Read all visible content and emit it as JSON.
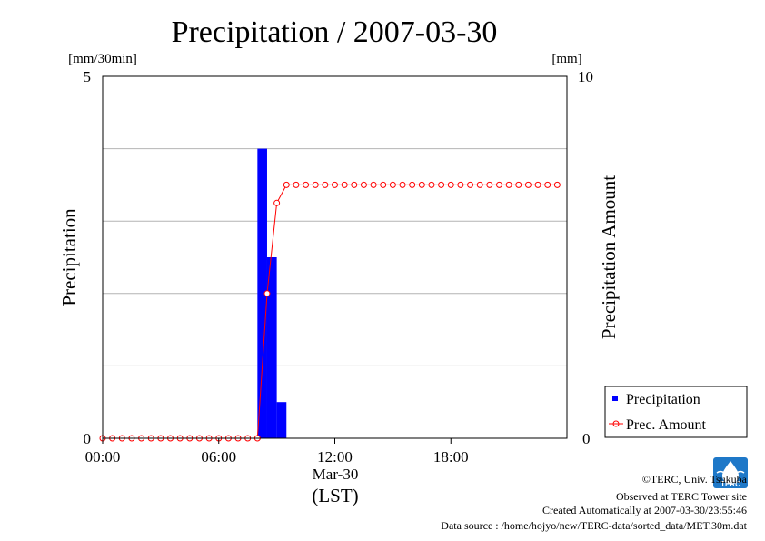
{
  "chart_data": {
    "type": "bar+line",
    "title": "Precipitation / 2007-03-30",
    "left_unit": "[mm/30min]",
    "right_unit": "[mm]",
    "ylabel_left": "Precipitation",
    "ylabel_right": "Precipitation Amount",
    "xlabel_date": "Mar-30",
    "xlabel_tz": "(LST)",
    "x_ticks": [
      "00:00",
      "06:00",
      "12:00",
      "18:00"
    ],
    "x_tick_hours": [
      0,
      6,
      12,
      18
    ],
    "xlim_hours": [
      0,
      24
    ],
    "y_left_ticks": [
      "0",
      "5"
    ],
    "y_left_lim": [
      0,
      5
    ],
    "y_right_ticks": [
      "0",
      "10"
    ],
    "y_right_lim": [
      0,
      10
    ],
    "grid": true,
    "legend_position": "bottom-right outside",
    "series": [
      {
        "name": "Precipitation",
        "kind": "bar",
        "unit": "mm/30min",
        "color": "#0000ff",
        "x_hours": [
          8.0,
          8.5,
          9.0
        ],
        "values": [
          4.0,
          2.5,
          0.5
        ]
      },
      {
        "name": "Prec. Amount",
        "kind": "line-marker",
        "unit": "mm",
        "color": "#ff0000",
        "x_hours": [
          0,
          0.5,
          1,
          1.5,
          2,
          2.5,
          3,
          3.5,
          4,
          4.5,
          5,
          5.5,
          6,
          6.5,
          7,
          7.5,
          8,
          8.5,
          9,
          9.5,
          10,
          10.5,
          11,
          11.5,
          12,
          12.5,
          13,
          13.5,
          14,
          14.5,
          15,
          15.5,
          16,
          16.5,
          17,
          17.5,
          18,
          18.5,
          19,
          19.5,
          20,
          20.5,
          21,
          21.5,
          22,
          22.5,
          23,
          23.5
        ],
        "values": [
          0,
          0,
          0,
          0,
          0,
          0,
          0,
          0,
          0,
          0,
          0,
          0,
          0,
          0,
          0,
          0,
          0,
          4,
          6.5,
          7,
          7,
          7,
          7,
          7,
          7,
          7,
          7,
          7,
          7,
          7,
          7,
          7,
          7,
          7,
          7,
          7,
          7,
          7,
          7,
          7,
          7,
          7,
          7,
          7,
          7,
          7,
          7,
          7
        ]
      }
    ]
  },
  "footer": {
    "copyright": "©TERC, Univ. Tsukuba",
    "observed": "Observed at TERC Tower site",
    "created": "Created Automatically at 2007-03-30/23:55:46",
    "source": "Data source : /home/hojyo/new/TERC-data/sorted_data/MET.30m.dat"
  },
  "logo": {
    "text": "TERC",
    "color": "#1e78c8"
  }
}
